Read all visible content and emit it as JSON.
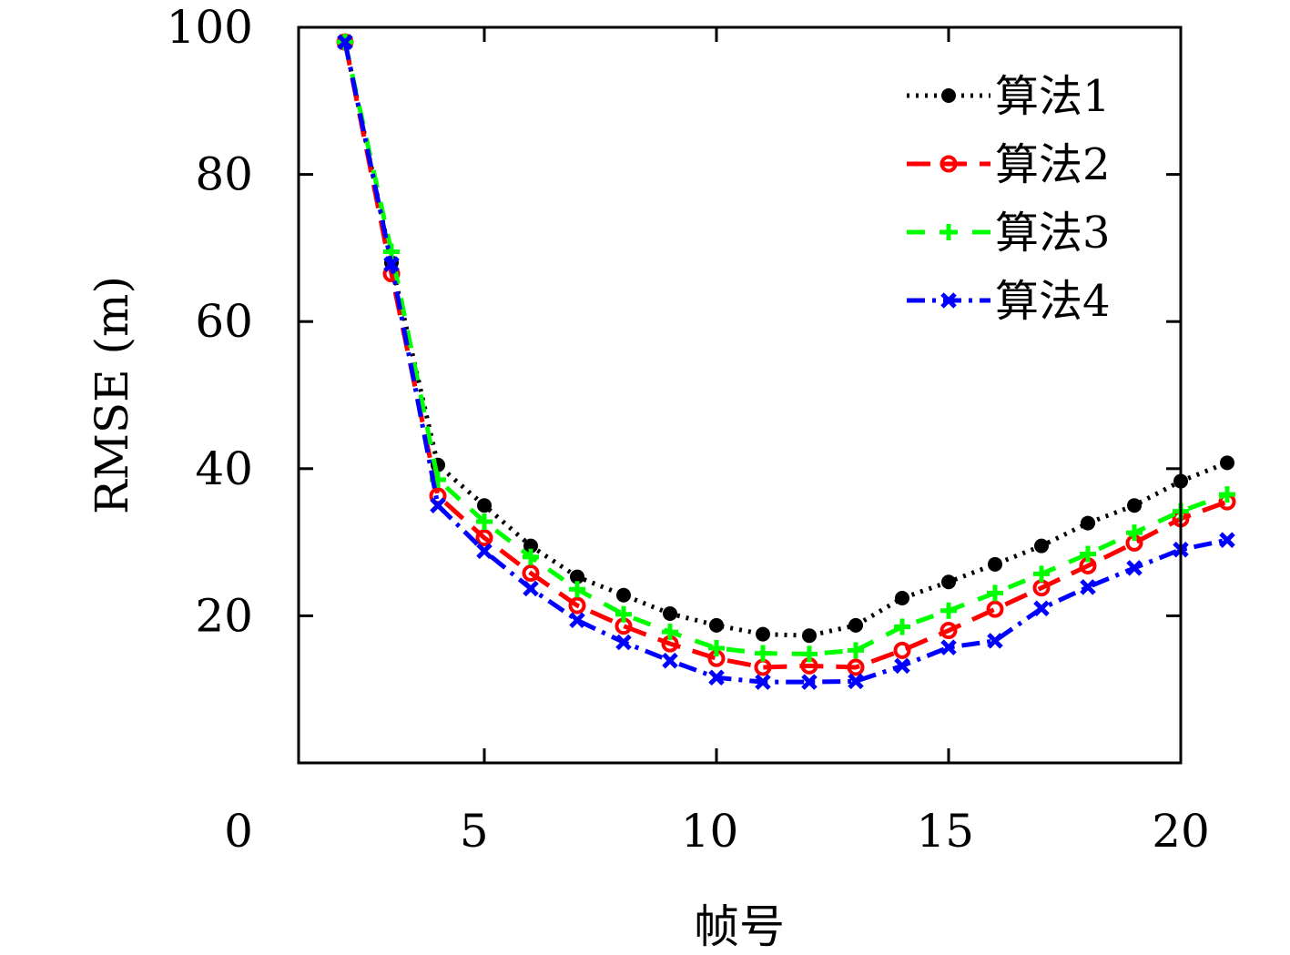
{
  "chart_data": {
    "type": "line",
    "xlabel": "帧号",
    "ylabel": "RMSE (m)",
    "xlim": [
      0,
      20
    ],
    "ylim": [
      0,
      100
    ],
    "x_plot_min": 1,
    "xticks": [
      {
        "value": 0,
        "label": "0"
      },
      {
        "value": 5,
        "label": "5"
      },
      {
        "value": 10,
        "label": "10"
      },
      {
        "value": 15,
        "label": "15"
      },
      {
        "value": 20,
        "label": "20"
      }
    ],
    "yticks": [
      {
        "value": 20,
        "label": "20"
      },
      {
        "value": 40,
        "label": "40"
      },
      {
        "value": 60,
        "label": "60"
      },
      {
        "value": 80,
        "label": "80"
      },
      {
        "value": 100,
        "label": "100"
      }
    ],
    "grid": false,
    "legend_position": "top-right",
    "x": [
      2,
      3,
      4,
      5,
      6,
      7,
      8,
      9,
      10,
      11,
      12,
      13,
      14,
      15,
      16,
      17,
      18,
      19,
      20,
      21
    ],
    "series": [
      {
        "name": "算法1",
        "color": "#000000",
        "marker": "filled-circle",
        "dash": "3,7",
        "values": [
          98,
          68,
          40.5,
          35,
          29.5,
          25.3,
          22.8,
          20.3,
          18.7,
          17.5,
          17.3,
          18.7,
          22.4,
          24.6,
          27,
          29.5,
          32.6,
          35,
          38.3,
          40.8
        ]
      },
      {
        "name": "算法2",
        "color": "#ff0000",
        "marker": "open-circle",
        "dash": "26,14",
        "values": [
          98,
          66.5,
          36.3,
          30.6,
          25.8,
          21.4,
          18.6,
          16.2,
          14.2,
          13,
          13.2,
          13,
          15.3,
          18,
          20.9,
          23.8,
          26.8,
          29.9,
          33.2,
          35.5
        ]
      },
      {
        "name": "算法3",
        "color": "#00ff00",
        "marker": "plus",
        "dash": "20,16",
        "values": [
          98,
          69.5,
          38.5,
          32.8,
          28,
          23.6,
          20.2,
          17.8,
          15.6,
          14.9,
          14.8,
          15.3,
          18.5,
          20.7,
          23.1,
          25.7,
          28.4,
          31.3,
          34.2,
          36.5
        ]
      },
      {
        "name": "算法4",
        "color": "#0000ff",
        "marker": "x",
        "dash": "20,8,4,8",
        "values": [
          98,
          67.8,
          35,
          28.8,
          23.7,
          19.4,
          16.4,
          13.9,
          11.6,
          11,
          11,
          11.1,
          13.2,
          15.7,
          16.6,
          21,
          23.9,
          26.5,
          29,
          30.3
        ]
      }
    ]
  }
}
